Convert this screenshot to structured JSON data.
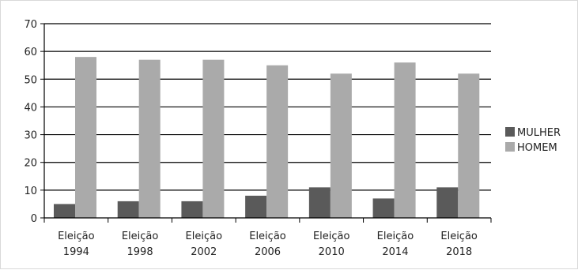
{
  "chart_data": {
    "type": "bar",
    "categories": [
      [
        "Eleição",
        "1994"
      ],
      [
        "Eleição",
        "1998"
      ],
      [
        "Eleição",
        "2002"
      ],
      [
        "Eleição",
        "2006"
      ],
      [
        "Eleição",
        "2010"
      ],
      [
        "Eleição",
        "2014"
      ],
      [
        "Eleição",
        "2018"
      ]
    ],
    "series": [
      {
        "name": "MULHER",
        "color": "#5a5a5a",
        "values": [
          5,
          6,
          6,
          8,
          11,
          7,
          11
        ]
      },
      {
        "name": "HOMEM",
        "color": "#aaaaaa",
        "values": [
          58,
          57,
          57,
          55,
          52,
          56,
          52
        ]
      }
    ],
    "ylim": [
      0,
      70
    ],
    "yticks": [
      0,
      10,
      20,
      30,
      40,
      50,
      60,
      70
    ],
    "grid": true,
    "legend_position": "right",
    "title": "",
    "xlabel": "",
    "ylabel": ""
  }
}
